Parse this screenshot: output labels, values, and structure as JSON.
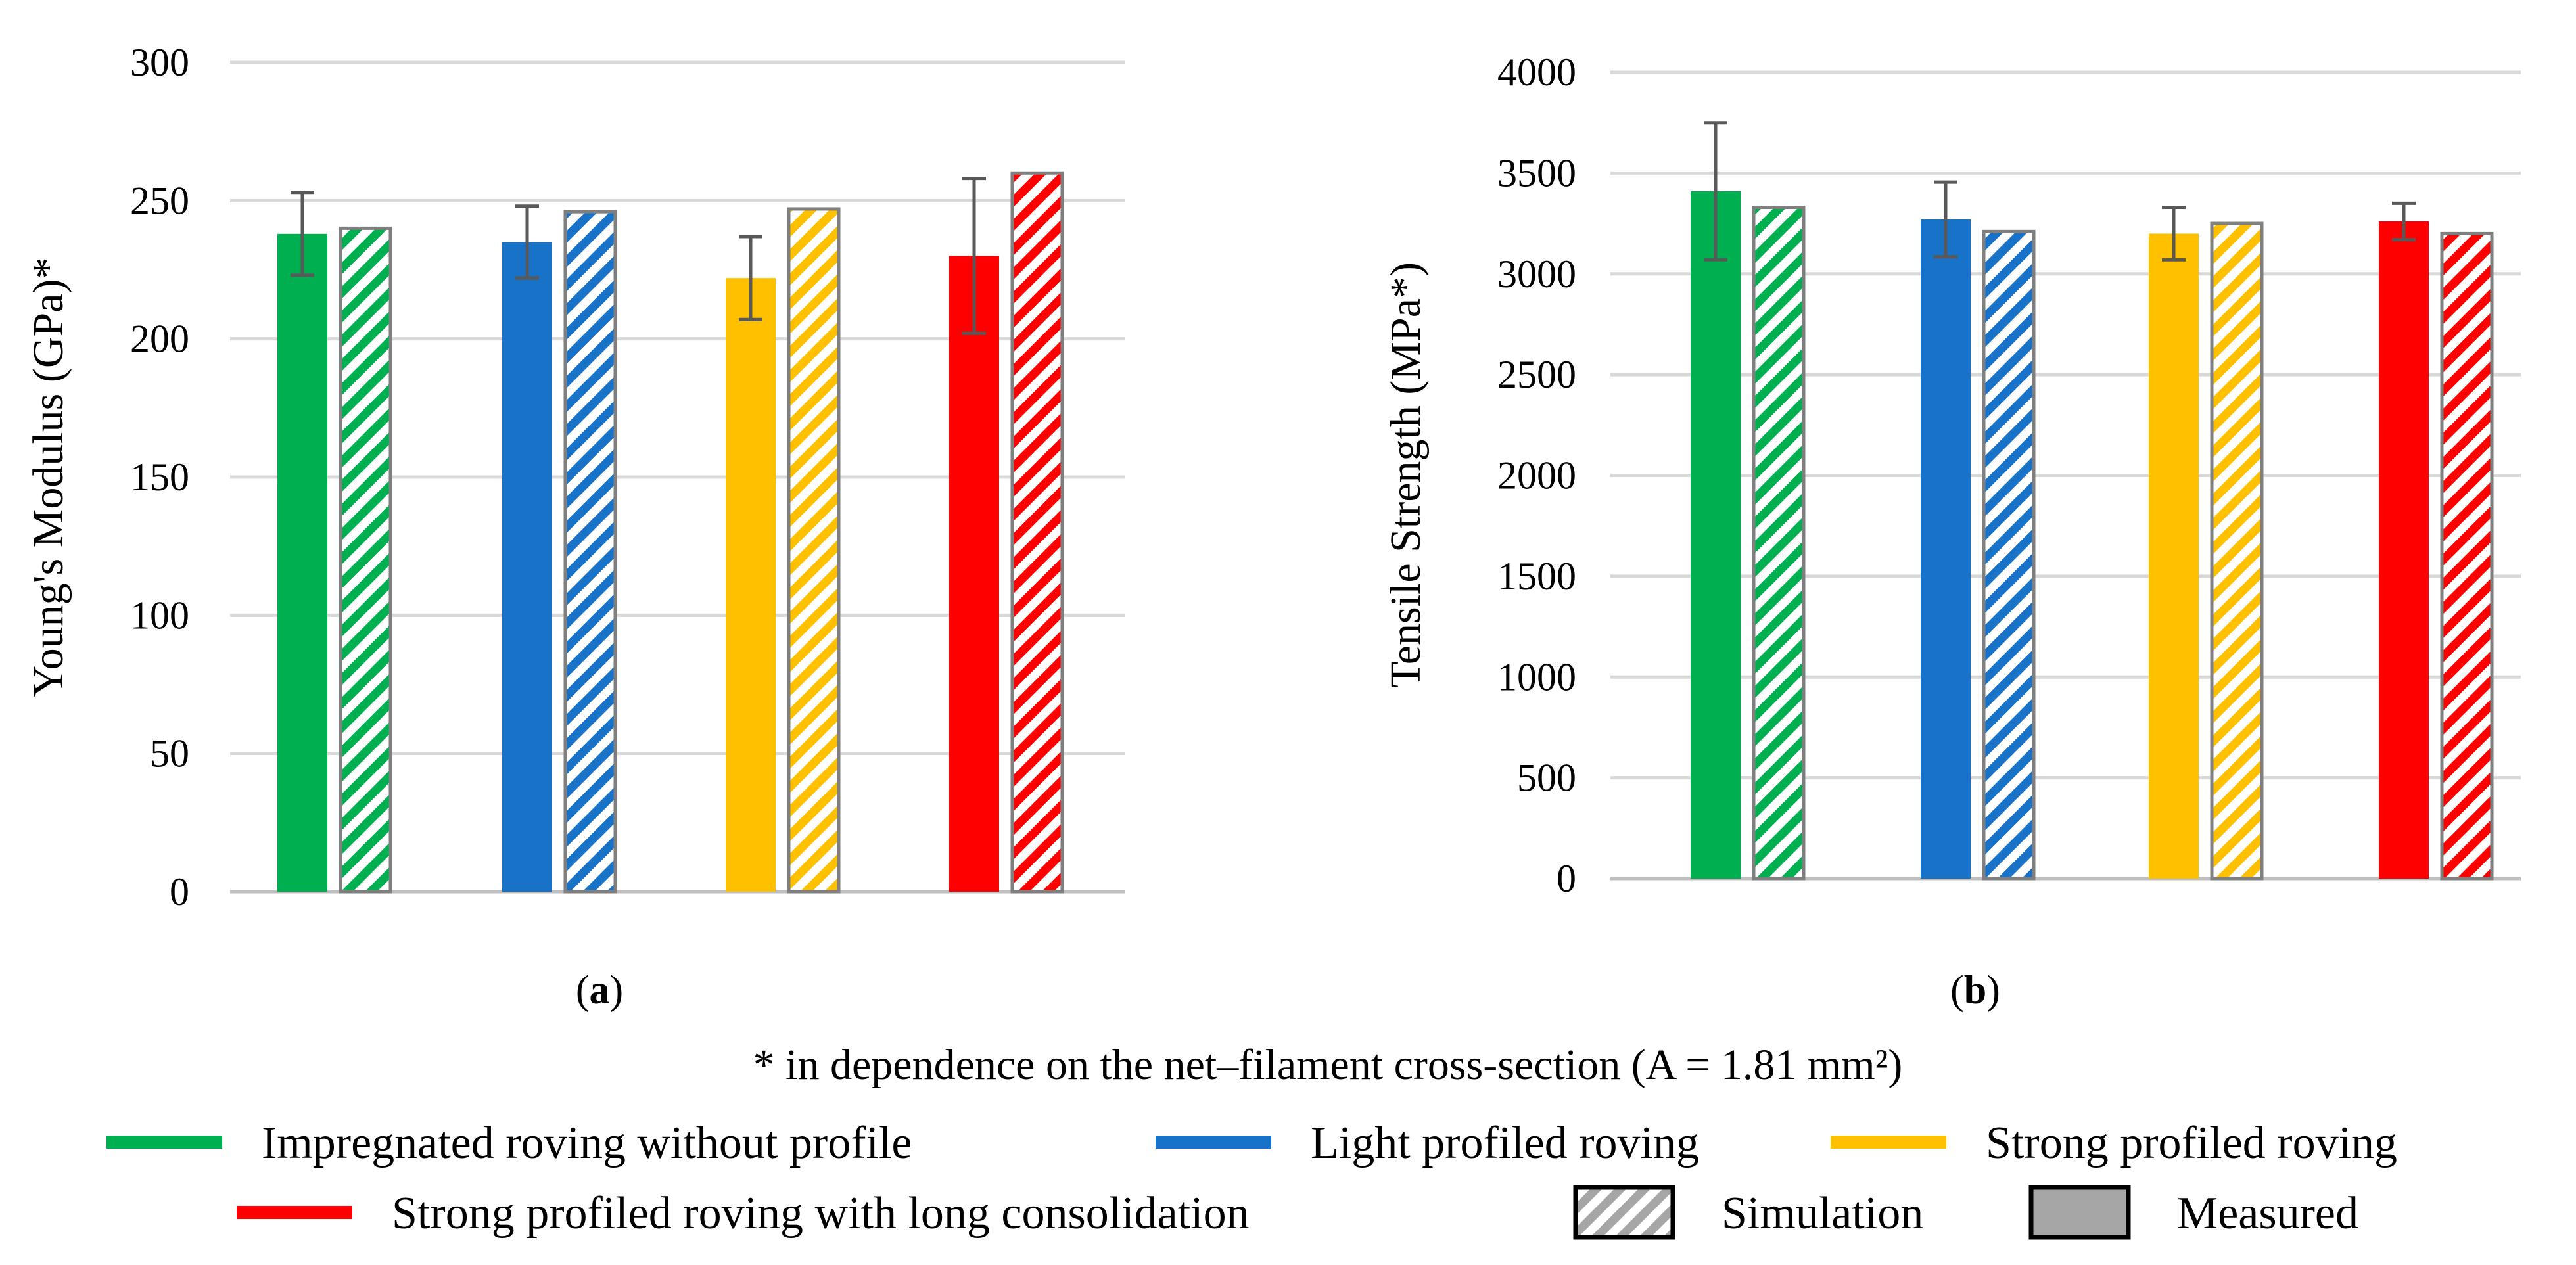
{
  "footnote": "* in dependence on the net–filament cross-section (A = 1.81 mm²)",
  "colors": {
    "green": "#00b050",
    "blue": "#1872c8",
    "yellow": "#ffc000",
    "red": "#ff0000",
    "grid": "#d9d9d9",
    "axis": "#bfbfbf",
    "error": "#595959",
    "outline": "#7f7f7f",
    "legend_gray": "#a6a6a6"
  },
  "legend": {
    "items": [
      {
        "label": "Impregnated roving without profile",
        "kind": "line",
        "color": "#00b050"
      },
      {
        "label": "Light profiled roving",
        "kind": "line",
        "color": "#1872c8"
      },
      {
        "label": "Strong profiled roving",
        "kind": "line",
        "color": "#ffc000"
      },
      {
        "label": "Strong profiled roving with long consolidation",
        "kind": "line",
        "color": "#ff0000"
      },
      {
        "label": "Simulation",
        "kind": "hatch",
        "color": "#a6a6a6"
      },
      {
        "label": "Measured",
        "kind": "solid",
        "color": "#a6a6a6"
      }
    ]
  },
  "chart_data": [
    {
      "id": "a",
      "panel_label": "a",
      "type": "bar",
      "ylabel": "Young's Modulus (GPa)*",
      "ylim": [
        0,
        300
      ],
      "yticks": [
        0,
        50,
        100,
        150,
        200,
        250,
        300
      ],
      "grid": true,
      "categories": [
        "Impregnated roving without profile",
        "Light profiled roving",
        "Strong profiled roving",
        "Strong profiled roving with long consolidation"
      ],
      "series": [
        {
          "name": "Measured",
          "values": [
            238,
            235,
            222,
            230
          ],
          "error": [
            15,
            13,
            15,
            28
          ]
        },
        {
          "name": "Simulation",
          "values": [
            240,
            246,
            247,
            260
          ]
        }
      ]
    },
    {
      "id": "b",
      "panel_label": "b",
      "type": "bar",
      "ylabel": "Tensile Strength (MPa*)",
      "ylim": [
        0,
        4000
      ],
      "yticks": [
        0,
        500,
        1000,
        1500,
        2000,
        2500,
        3000,
        3500,
        4000
      ],
      "grid": true,
      "categories": [
        "Impregnated roving without profile",
        "Light profiled roving",
        "Strong profiled roving",
        "Strong profiled roving with long consolidation"
      ],
      "series": [
        {
          "name": "Measured",
          "values": [
            3410,
            3270,
            3200,
            3260
          ],
          "error": [
            340,
            185,
            130,
            90
          ]
        },
        {
          "name": "Simulation",
          "values": [
            3330,
            3210,
            3250,
            3200
          ]
        }
      ]
    }
  ]
}
